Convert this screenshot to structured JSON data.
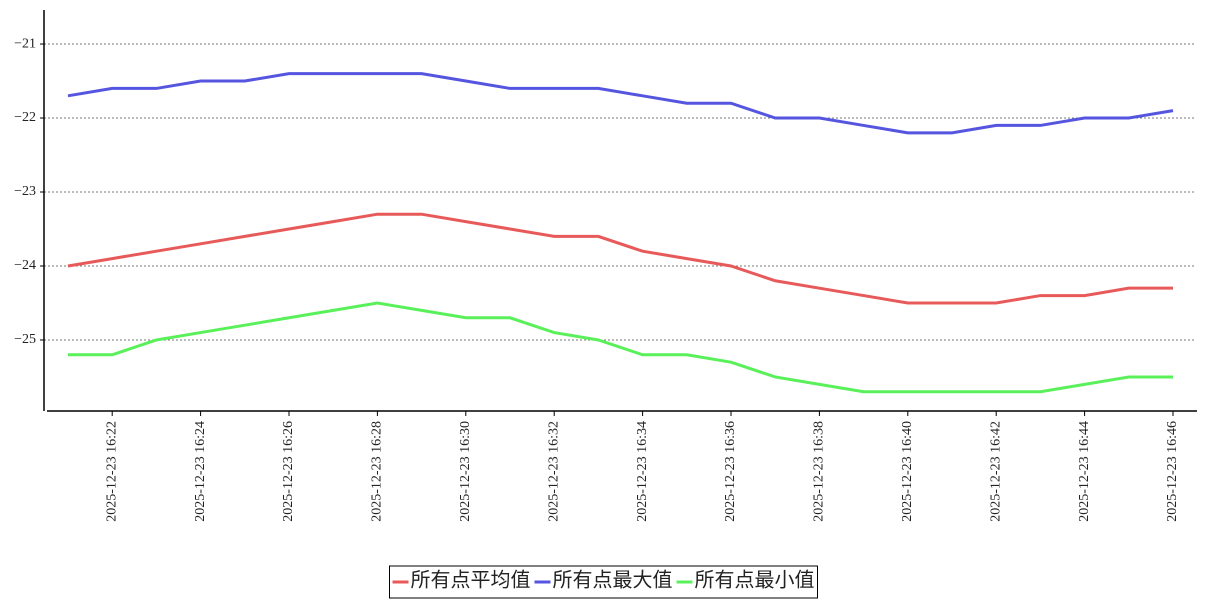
{
  "chart_data": {
    "type": "line",
    "categories": [
      null,
      "2025-12-23 16:22",
      null,
      "2025-12-23 16:24",
      null,
      "2025-12-23 16:26",
      null,
      "2025-12-23 16:28",
      null,
      "2025-12-23 16:30",
      null,
      "2025-12-23 16:32",
      null,
      "2025-12-23 16:34",
      null,
      "2025-12-23 16:36",
      null,
      "2025-12-23 16:38",
      null,
      "2025-12-23 16:40",
      null,
      "2025-12-23 16:42",
      null,
      "2025-12-23 16:44",
      null,
      "2025-12-23 16:46"
    ],
    "series": [
      {
        "name": "所有点平均值",
        "color": "#e85a5a",
        "values": [
          -24.0,
          -23.9,
          -23.8,
          -23.7,
          -23.6,
          -23.5,
          -23.4,
          -23.3,
          -23.3,
          -23.4,
          -23.5,
          -23.6,
          -23.6,
          -23.8,
          -23.9,
          -24.0,
          -24.2,
          -24.3,
          -24.4,
          -24.5,
          -24.5,
          -24.5,
          -24.4,
          -24.4,
          -24.3,
          -24.3
        ]
      },
      {
        "name": "所有点最大值",
        "color": "#5555e0",
        "values": [
          -21.7,
          -21.6,
          -21.6,
          -21.5,
          -21.5,
          -21.4,
          -21.4,
          -21.4,
          -21.4,
          -21.5,
          -21.6,
          -21.6,
          -21.6,
          -21.7,
          -21.8,
          -21.8,
          -22.0,
          -22.0,
          -22.1,
          -22.2,
          -22.2,
          -22.1,
          -22.1,
          -22.0,
          -22.0,
          -21.9
        ]
      },
      {
        "name": "所有点最小值",
        "color": "#5af05a",
        "values": [
          -25.2,
          -25.2,
          -25.0,
          -24.9,
          -24.8,
          -24.7,
          -24.6,
          -24.5,
          -24.6,
          -24.7,
          -24.7,
          -24.9,
          -25.0,
          -25.2,
          -25.2,
          -25.3,
          -25.5,
          -25.6,
          -25.7,
          -25.7,
          -25.7,
          -25.7,
          -25.7,
          -25.6,
          -25.5,
          -25.5
        ]
      }
    ],
    "ylim": [
      -25.96,
      -20.54
    ],
    "yticks": [
      {
        "value": -25,
        "label": "−25"
      },
      {
        "value": -24,
        "label": "−24"
      },
      {
        "value": -23,
        "label": "−23"
      },
      {
        "value": -22,
        "label": "−22"
      },
      {
        "value": -21,
        "label": "−21"
      }
    ],
    "grid": true,
    "legend": "bottom"
  }
}
